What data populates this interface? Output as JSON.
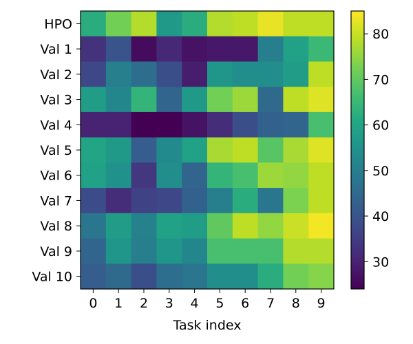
{
  "chart_data": {
    "type": "heatmap",
    "title": "",
    "xlabel": "Task index",
    "ylabel": "",
    "x_categories": [
      "0",
      "1",
      "2",
      "3",
      "4",
      "5",
      "6",
      "7",
      "8",
      "9"
    ],
    "y_categories": [
      "HPO",
      "Val 1",
      "Val 2",
      "Val 3",
      "Val 4",
      "Val 5",
      "Val 6",
      "Val 7",
      "Val 8",
      "Val 9",
      "Val 10"
    ],
    "values": [
      [
        62,
        72,
        78,
        57,
        62,
        78,
        79,
        83,
        79,
        79
      ],
      [
        33,
        40,
        26,
        31,
        27,
        28,
        28,
        50,
        59,
        65
      ],
      [
        37,
        50,
        46,
        39,
        29,
        56,
        54,
        54,
        58,
        79
      ],
      [
        58,
        52,
        64,
        44,
        57,
        72,
        76,
        45,
        79,
        82
      ],
      [
        30,
        30,
        24,
        24,
        27,
        32,
        39,
        43,
        44,
        67
      ],
      [
        60,
        57,
        42,
        53,
        59,
        77,
        79,
        69,
        77,
        82
      ],
      [
        59,
        55,
        34,
        54,
        44,
        64,
        67,
        76,
        75,
        79
      ],
      [
        38,
        32,
        36,
        37,
        43,
        50,
        62,
        48,
        73,
        79
      ],
      [
        48,
        58,
        51,
        59,
        58,
        70,
        79,
        75,
        80,
        84
      ],
      [
        44,
        56,
        50,
        56,
        52,
        67,
        67,
        67,
        78,
        78
      ],
      [
        42,
        45,
        39,
        46,
        48,
        54,
        54,
        62,
        72,
        74
      ]
    ],
    "colorbar": {
      "min": 24,
      "max": 85,
      "ticks": [
        30,
        40,
        50,
        60,
        70,
        80
      ]
    },
    "colormap": "viridis",
    "grid": false,
    "legend": "colorbar-right"
  }
}
